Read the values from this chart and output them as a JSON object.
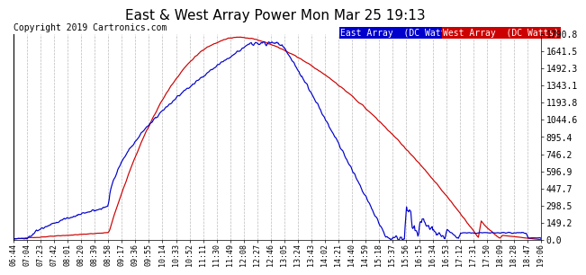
{
  "title": "East & West Array Power Mon Mar 25 19:13",
  "copyright": "Copyright 2019 Cartronics.com",
  "ylabel_right_ticks": [
    0.0,
    149.2,
    298.5,
    447.7,
    596.9,
    746.2,
    895.4,
    1044.6,
    1193.8,
    1343.1,
    1492.3,
    1641.5,
    1790.8
  ],
  "ymax": 1790.8,
  "ymin": 0.0,
  "east_color": "#0000cc",
  "west_color": "#cc0000",
  "legend_east_bg": "#0000cc",
  "legend_west_bg": "#cc0000",
  "legend_east_label": "East Array  (DC Watts)",
  "legend_west_label": "West Array  (DC Watts)",
  "plot_bg_color": "#ffffff",
  "background_color": "#ffffff",
  "grid_color": "#bbbbbb",
  "title_fontsize": 11,
  "copyright_fontsize": 7,
  "tick_labels": [
    "06:44",
    "07:04",
    "07:23",
    "07:42",
    "08:01",
    "08:20",
    "08:39",
    "08:58",
    "09:17",
    "09:36",
    "09:55",
    "10:14",
    "10:33",
    "10:52",
    "11:11",
    "11:30",
    "11:49",
    "12:08",
    "12:27",
    "12:46",
    "13:05",
    "13:24",
    "13:43",
    "14:02",
    "14:21",
    "14:40",
    "14:59",
    "15:18",
    "15:37",
    "15:56",
    "16:15",
    "16:34",
    "16:53",
    "17:12",
    "17:31",
    "17:50",
    "18:09",
    "18:28",
    "18:47",
    "19:06"
  ]
}
